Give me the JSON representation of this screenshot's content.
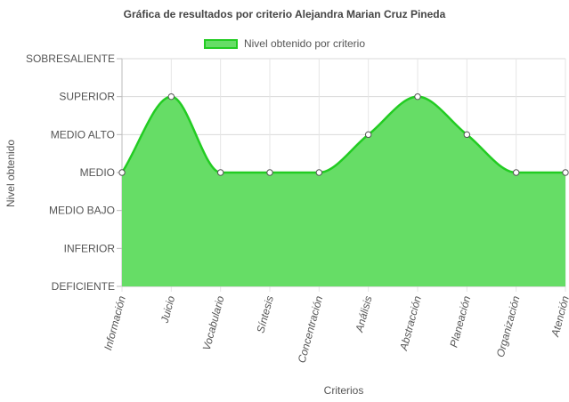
{
  "chart_data": {
    "type": "area",
    "title": "Gráfica de resultados por criterio Alejandra Marian Cruz Pineda",
    "xlabel": "Criterios",
    "ylabel": "Nivel obtenido",
    "y_levels": [
      "DEFICIENTE",
      "INFERIOR",
      "MEDIO BAJO",
      "MEDIO",
      "MEDIO ALTO",
      "SUPERIOR",
      "SOBRESALIENTE"
    ],
    "ylim": [
      0,
      6
    ],
    "categories": [
      "Información",
      "Juicio",
      "Vocabulario",
      "Síntesis",
      "Concentración",
      "Análisis",
      "Abstracción",
      "Planeación",
      "Organización",
      "Atención"
    ],
    "series": [
      {
        "name": "Nivel obtenido por criterio",
        "values": [
          3,
          5,
          3,
          3,
          3,
          4,
          5,
          4,
          3,
          3
        ],
        "fill": "#66dd66",
        "stroke": "#22cc22"
      }
    ],
    "grid": true,
    "legend_position": "top"
  }
}
